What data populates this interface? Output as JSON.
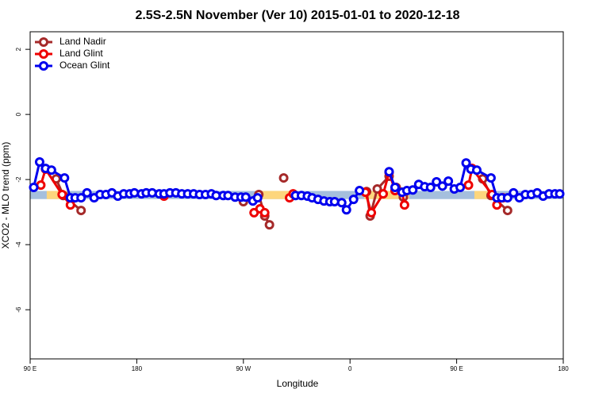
{
  "chart_data": {
    "type": "line",
    "title": "2.5S-2.5N November (Ver 10)   2015-01-01 to 2020-12-18",
    "x_label": "Longitude",
    "y_label": "XCO2 - MLO trend (ppm)",
    "xlim": [
      90,
      540
    ],
    "ylim": [
      -7.51,
      2.54
    ],
    "xticks": [
      {
        "value": 90,
        "label": "90 E"
      },
      180,
      {
        "value": 270,
        "label": "90 W"
      },
      {
        "value": 360,
        "label": "0"
      },
      {
        "value": 450,
        "label": "90 E"
      },
      {
        "value": 540,
        "label": "180"
      }
    ],
    "yticks": [
      -6,
      -4,
      -2,
      0,
      2
    ],
    "legend": "top-left",
    "band": {
      "range": [
        -2.6,
        -2.35
      ],
      "segments": [
        {
          "from": 90,
          "to": 540,
          "color": "#a5bfdd"
        },
        {
          "from": 104,
          "to": 122,
          "color": "#fdd67d"
        },
        {
          "from": 280,
          "to": 312,
          "color": "#fdd67d"
        },
        {
          "from": 372,
          "to": 410,
          "color": "#fdd67d"
        },
        {
          "from": 465,
          "to": 480,
          "color": "#fdd67d"
        }
      ]
    },
    "series": [
      {
        "name": "Land Nadir",
        "color": "#a52a2a",
        "x": [
          112,
          118,
          133,
          null,
          270,
          283,
          288,
          292,
          null,
          304,
          null,
          374,
          377,
          383,
          393,
          399,
          405,
          null,
          472,
          479,
          493
        ],
        "values": [
          -1.98,
          -2.49,
          -2.95,
          null,
          -2.68,
          -2.46,
          -3.12,
          -3.39,
          null,
          -1.95,
          null,
          -2.37,
          -3.12,
          -2.29,
          -1.9,
          -2.24,
          -2.54,
          null,
          -1.98,
          -2.49,
          -2.95
        ]
      },
      {
        "name": "Land Glint",
        "color": "#ee0000",
        "x": [
          99,
          103,
          117,
          124,
          null,
          203,
          null,
          279,
          284,
          288,
          null,
          309,
          312,
          null,
          373,
          378,
          388,
          393,
          398,
          404,
          406,
          null,
          460,
          463,
          480,
          484,
          489
        ],
        "values": [
          -2.17,
          -1.68,
          -2.46,
          -2.78,
          null,
          -2.51,
          null,
          -3.02,
          -2.9,
          -3.02,
          null,
          -2.56,
          -2.44,
          null,
          -2.39,
          -3.02,
          -2.44,
          -1.78,
          -2.34,
          -2.39,
          -2.78,
          null,
          -2.17,
          -1.66,
          -2.46,
          -2.78,
          -2.56
        ]
      },
      {
        "name": "Ocean Glint",
        "color": "#0000ee",
        "x": [
          93,
          98,
          103,
          108,
          119,
          124,
          128,
          133,
          138,
          144,
          149,
          154,
          159,
          164,
          169,
          174,
          178,
          184,
          188,
          193,
          199,
          203,
          208,
          213,
          218,
          223,
          228,
          233,
          238,
          243,
          247,
          253,
          257,
          263,
          268,
          272,
          278,
          282,
          null,
          314,
          319,
          324,
          328,
          333,
          338,
          343,
          347,
          353,
          357,
          363,
          368,
          null,
          393,
          398,
          404,
          408,
          413,
          418,
          423,
          428,
          433,
          438,
          443,
          448,
          453,
          458,
          462,
          467,
          479,
          484,
          488,
          493,
          498,
          503,
          508,
          513,
          518,
          523,
          528,
          533,
          537
        ],
        "values": [
          -2.24,
          -1.46,
          -1.66,
          -1.71,
          -1.95,
          -2.56,
          -2.56,
          -2.56,
          -2.41,
          -2.56,
          -2.46,
          -2.46,
          -2.41,
          -2.51,
          -2.44,
          -2.44,
          -2.41,
          -2.44,
          -2.41,
          -2.41,
          -2.44,
          -2.44,
          -2.41,
          -2.41,
          -2.44,
          -2.44,
          -2.44,
          -2.46,
          -2.46,
          -2.44,
          -2.49,
          -2.49,
          -2.49,
          -2.54,
          -2.54,
          -2.54,
          -2.66,
          -2.56,
          null,
          -2.49,
          -2.49,
          -2.51,
          -2.56,
          -2.61,
          -2.66,
          -2.68,
          -2.68,
          -2.71,
          -2.93,
          -2.61,
          -2.34,
          null,
          -1.76,
          -2.24,
          -2.39,
          -2.34,
          -2.32,
          -2.15,
          -2.22,
          -2.24,
          -2.07,
          -2.2,
          -2.05,
          -2.29,
          -2.24,
          -1.49,
          -1.68,
          -1.71,
          -1.95,
          -2.56,
          -2.56,
          -2.56,
          -2.41,
          -2.56,
          -2.46,
          -2.46,
          -2.41,
          -2.51,
          -2.44,
          -2.44,
          -2.44
        ]
      }
    ]
  }
}
